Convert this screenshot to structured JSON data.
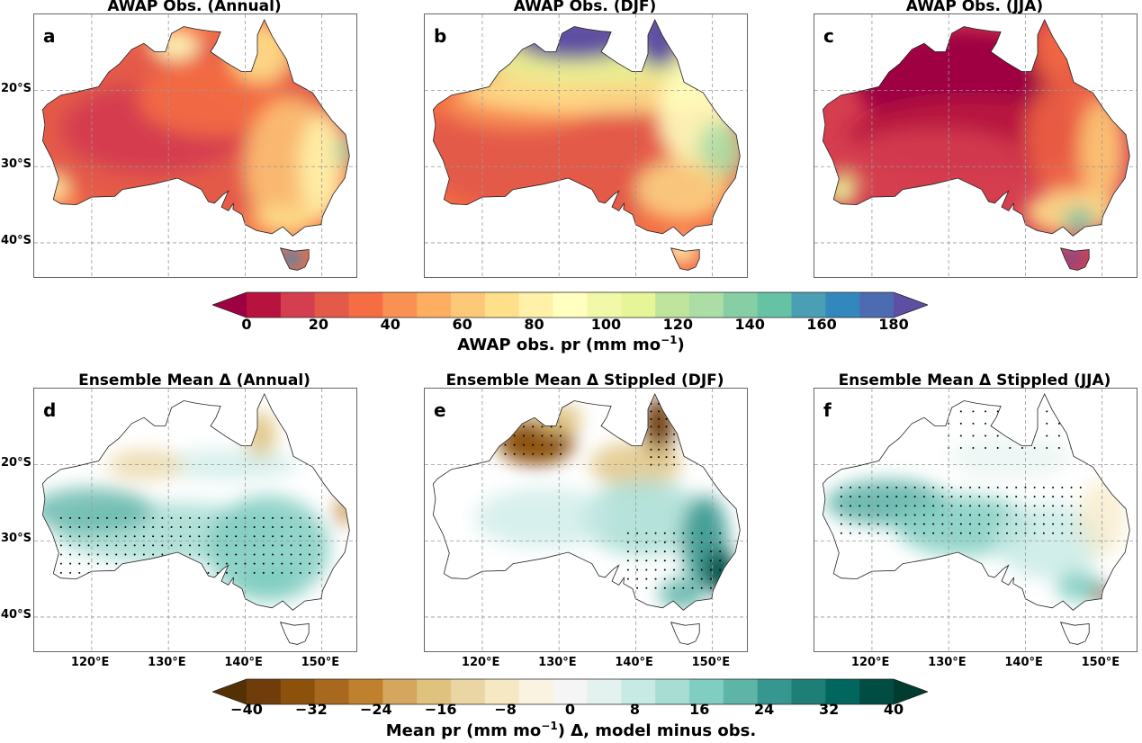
{
  "panels": [
    {
      "letter": "a",
      "title": "AWAP Obs. (Annual)",
      "kind": "annual"
    },
    {
      "letter": "b",
      "title": "AWAP Obs. (DJF)",
      "kind": "djf"
    },
    {
      "letter": "c",
      "title": "AWAP Obs. (JJA)",
      "kind": "jja"
    },
    {
      "letter": "d",
      "title": "Ensemble Mean Δ (Annual)",
      "kind": "dannual"
    },
    {
      "letter": "e",
      "title": "Ensemble Mean Δ Stippled (DJF)",
      "kind": "ddjf"
    },
    {
      "letter": "f",
      "title": "Ensemble Mean Δ Stippled (JJA)",
      "kind": "djja"
    }
  ],
  "lat_labels": [
    "20°S",
    "30°S",
    "40°S"
  ],
  "lon_labels": [
    "120°E",
    "130°E",
    "140°E",
    "150°E"
  ],
  "colorbar_top": {
    "label": "AWAP obs. pr (mm mo",
    "label_sup": "−1",
    "label_end": ")",
    "ticks": [
      "0",
      "20",
      "40",
      "60",
      "80",
      "100",
      "120",
      "140",
      "160",
      "180"
    ],
    "colors": [
      "#9e0142",
      "#b8123f",
      "#d53e4f",
      "#e45a49",
      "#f46d43",
      "#f99153",
      "#fdae61",
      "#fdc877",
      "#fee08b",
      "#fff1a8",
      "#ffffbf",
      "#f1f9a9",
      "#e6f598",
      "#c1e49c",
      "#abdda4",
      "#86cfa5",
      "#66c2a5",
      "#4a9fb5",
      "#3288bd",
      "#4d6bb0",
      "#5e4fa2"
    ]
  },
  "colorbar_bottom": {
    "label": "Mean pr (mm mo",
    "label_sup": "−1",
    "label_end": ") Δ, model minus obs.",
    "ticks": [
      "−40",
      "−32",
      "−24",
      "−16",
      "−8",
      "0",
      "8",
      "16",
      "24",
      "32",
      "40"
    ],
    "colors": [
      "#543005",
      "#6f3c0a",
      "#8c510a",
      "#a8691e",
      "#bf812d",
      "#d4a65e",
      "#dfc27d",
      "#ead6a4",
      "#f6e8c3",
      "#fbf3e1",
      "#f5f5f5",
      "#e3f2ef",
      "#c7eae5",
      "#a8ddd4",
      "#80cdc1",
      "#5fb4a8",
      "#35978f",
      "#1e7f77",
      "#01665e",
      "#014d44",
      "#003c30"
    ]
  }
}
